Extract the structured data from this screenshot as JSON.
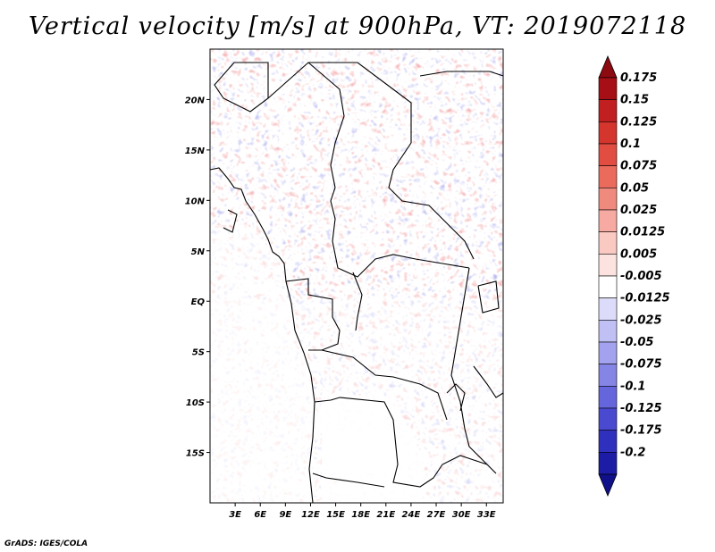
{
  "title": "Vertical velocity [m/s] at 900hPa, VT: 2019072118",
  "credit": "GrADS: IGES/COLA",
  "map": {
    "lon_range": [
      0,
      35
    ],
    "lat_range": [
      -20,
      25
    ],
    "x_ticks": [
      {
        "lon": 3,
        "label": "3E"
      },
      {
        "lon": 6,
        "label": "6E"
      },
      {
        "lon": 9,
        "label": "9E"
      },
      {
        "lon": 12,
        "label": "12E"
      },
      {
        "lon": 15,
        "label": "15E"
      },
      {
        "lon": 18,
        "label": "18E"
      },
      {
        "lon": 21,
        "label": "21E"
      },
      {
        "lon": 24,
        "label": "24E"
      },
      {
        "lon": 27,
        "label": "27E"
      },
      {
        "lon": 30,
        "label": "30E"
      },
      {
        "lon": 33,
        "label": "33E"
      }
    ],
    "y_ticks": [
      {
        "lat": 20,
        "label": "20N"
      },
      {
        "lat": 15,
        "label": "15N"
      },
      {
        "lat": 10,
        "label": "10N"
      },
      {
        "lat": 5,
        "label": "5N"
      },
      {
        "lat": 0,
        "label": "EQ"
      },
      {
        "lat": -5,
        "label": "5S"
      },
      {
        "lat": -10,
        "label": "10S"
      },
      {
        "lat": -15,
        "label": "15S"
      }
    ]
  },
  "colorbar": {
    "levels": [
      {
        "label": "0.175",
        "color": "#a50f15"
      },
      {
        "label": "0.15",
        "color": "#c11f20"
      },
      {
        "label": "0.125",
        "color": "#d4352c"
      },
      {
        "label": "0.1",
        "color": "#e14d41"
      },
      {
        "label": "0.075",
        "color": "#ea6a5c"
      },
      {
        "label": "0.05",
        "color": "#f08a7e"
      },
      {
        "label": "0.025",
        "color": "#f6aaa1"
      },
      {
        "label": "0.0125",
        "color": "#fac9c2"
      },
      {
        "label": "0.005",
        "color": "#fde3df"
      },
      {
        "label": "-0.005",
        "color": "#ffffff"
      },
      {
        "label": "-0.0125",
        "color": "#dcdcfa"
      },
      {
        "label": "-0.025",
        "color": "#c0c0f4"
      },
      {
        "label": "-0.05",
        "color": "#a2a2ee"
      },
      {
        "label": "-0.075",
        "color": "#8585e6"
      },
      {
        "label": "-0.1",
        "color": "#6666dc"
      },
      {
        "label": "-0.125",
        "color": "#4a4ad0"
      },
      {
        "label": "-0.175",
        "color": "#3030bf"
      },
      {
        "label": "-0.2",
        "color": "#1c1ca6"
      }
    ],
    "top_arrow_color": "#8c0a10",
    "bottom_arrow_color": "#10108a"
  }
}
